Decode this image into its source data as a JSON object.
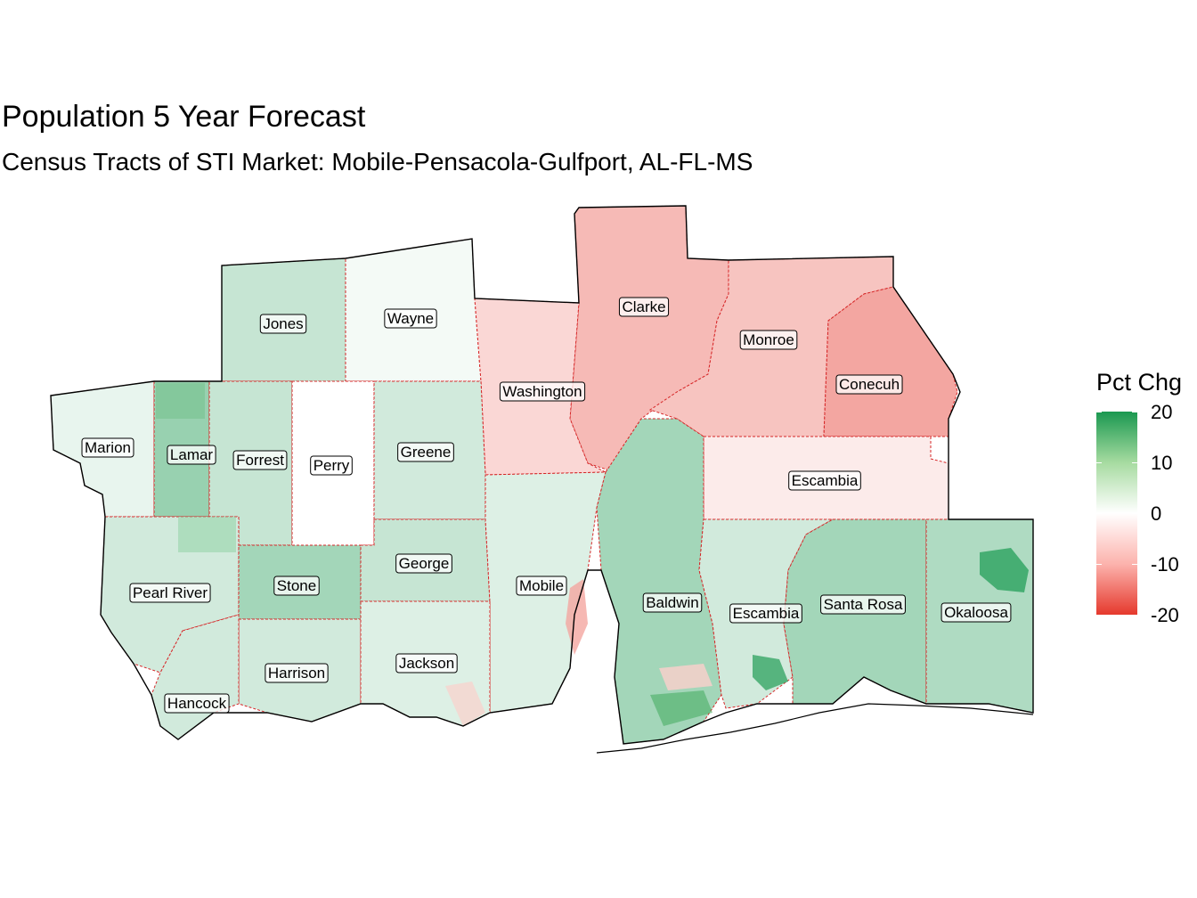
{
  "title": "Population 5 Year Forecast",
  "subtitle": "Census Tracts of STI Market: Mobile-Pensacola-Gulfport, AL-FL-MS",
  "legend": {
    "title": "Pct Chg",
    "ticks": [
      "20",
      "10",
      "0",
      "-10",
      "-20"
    ],
    "colors": {
      "high": "#1a9850",
      "mid": "#ffffff",
      "low": "#e5392d"
    }
  },
  "counties": [
    {
      "name": "Jones",
      "pct_chg": 5
    },
    {
      "name": "Wayne",
      "pct_chg": 1
    },
    {
      "name": "Clarke",
      "pct_chg": -7
    },
    {
      "name": "Monroe",
      "pct_chg": -6
    },
    {
      "name": "Washington",
      "pct_chg": -4
    },
    {
      "name": "Conecuh",
      "pct_chg": -9
    },
    {
      "name": "Marion",
      "pct_chg": 2
    },
    {
      "name": "Lamar",
      "pct_chg": 9
    },
    {
      "name": "Forrest",
      "pct_chg": 5
    },
    {
      "name": "Perry",
      "pct_chg": 0
    },
    {
      "name": "Greene",
      "pct_chg": 4
    },
    {
      "name": "Escambia",
      "pct_chg": -2
    },
    {
      "name": "Pearl River",
      "pct_chg": 4
    },
    {
      "name": "Stone",
      "pct_chg": 8
    },
    {
      "name": "George",
      "pct_chg": 5
    },
    {
      "name": "Mobile",
      "pct_chg": 3
    },
    {
      "name": "Baldwin",
      "pct_chg": 8
    },
    {
      "name": "Escambia",
      "pct_chg": 4
    },
    {
      "name": "Santa Rosa",
      "pct_chg": 8
    },
    {
      "name": "Okaloosa",
      "pct_chg": 7
    },
    {
      "name": "Harrison",
      "pct_chg": 4
    },
    {
      "name": "Jackson",
      "pct_chg": 3
    },
    {
      "name": "Hancock",
      "pct_chg": 4
    }
  ]
}
